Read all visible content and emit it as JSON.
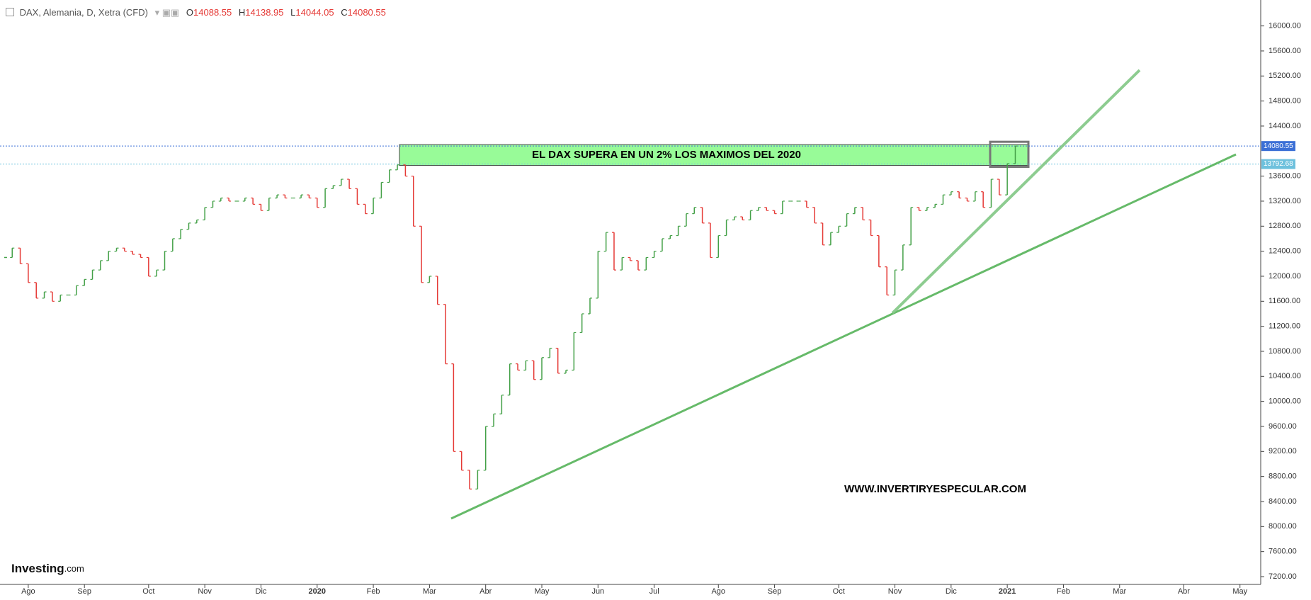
{
  "header": {
    "title": "DAX, Alemania, D, Xetra (CFD)",
    "o_label": "O",
    "open": "14088.55",
    "h_label": "H",
    "high": "14138.95",
    "l_label": "L",
    "low": "14044.05",
    "c_label": "C",
    "close": "14080.55"
  },
  "chart_data": {
    "type": "price-bars",
    "annotation": "EL DAX SUPERA EN UN 2% LOS MAXIMOS DEL 2020",
    "watermark": "WWW.INVERTIRYESPECULAR.COM",
    "logo": "Investing",
    "logo_suffix": ".com",
    "up_color": "#43a047",
    "down_color": "#e53935",
    "categories": [
      null,
      null,
      null,
      "Ago",
      null,
      null,
      null,
      null,
      null,
      null,
      "Sep",
      null,
      null,
      null,
      null,
      null,
      null,
      null,
      "Oct",
      null,
      null,
      null,
      null,
      null,
      null,
      "Nov",
      null,
      null,
      null,
      null,
      null,
      null,
      "Dic",
      null,
      null,
      null,
      null,
      null,
      null,
      "2020",
      null,
      null,
      null,
      null,
      null,
      null,
      "Feb",
      null,
      null,
      null,
      null,
      null,
      null,
      "Mar",
      null,
      null,
      null,
      null,
      null,
      null,
      "Abr",
      null,
      null,
      null,
      null,
      null,
      null,
      "May",
      null,
      null,
      null,
      null,
      null,
      null,
      "Jun",
      null,
      null,
      null,
      null,
      null,
      null,
      "Jul",
      null,
      null,
      null,
      null,
      null,
      null,
      null,
      "Ago",
      null,
      null,
      null,
      null,
      null,
      null,
      "Sep",
      null,
      null,
      null,
      null,
      null,
      null,
      null,
      "Oct",
      null,
      null,
      null,
      null,
      null,
      null,
      "Nov",
      null,
      null,
      null,
      null,
      null,
      null,
      "Dic",
      null,
      null,
      null,
      null,
      null,
      null,
      "2021",
      null,
      null,
      null,
      null,
      null,
      null,
      "Feb",
      null,
      null,
      null,
      null,
      null,
      null,
      "Mar",
      null,
      null,
      null,
      null,
      null,
      null,
      null,
      "Abr",
      null,
      null,
      null,
      null,
      null,
      null,
      "May",
      null,
      null
    ],
    "values": [
      12300,
      12450,
      12200,
      11900,
      11650,
      11750,
      11600,
      11700,
      11700,
      11850,
      11950,
      12100,
      12250,
      12400,
      12450,
      12400,
      12350,
      12300,
      12000,
      12100,
      12400,
      12600,
      12750,
      12850,
      12900,
      13100,
      13200,
      13250,
      13200,
      13200,
      13250,
      13150,
      13050,
      13250,
      13300,
      13250,
      13250,
      13300,
      13250,
      13100,
      13400,
      13450,
      13550,
      13400,
      13150,
      13000,
      13250,
      13500,
      13700,
      13780,
      13600,
      12800,
      11900,
      12000,
      11550,
      10600,
      9200,
      8900,
      8600,
      8900,
      9600,
      9800,
      10100,
      10600,
      10500,
      10650,
      10350,
      10700,
      10850,
      10450,
      10500,
      11100,
      11400,
      11650,
      12400,
      12700,
      12100,
      12300,
      12250,
      12100,
      12300,
      12400,
      12600,
      12650,
      12800,
      13000,
      13100,
      12850,
      12300,
      12650,
      12900,
      12950,
      12900,
      13050,
      13100,
      13050,
      13000,
      13200,
      13200,
      13200,
      13100,
      12850,
      12500,
      12700,
      12800,
      13000,
      13100,
      12900,
      12650,
      12150,
      11700,
      12100,
      12500,
      13100,
      13050,
      13100,
      13150,
      13300,
      13350,
      13250,
      13200,
      13350,
      13100,
      13550,
      13300,
      13800,
      14080.55,
      null,
      null,
      null,
      null,
      null,
      null,
      null,
      null,
      null,
      null,
      null,
      null,
      null,
      null,
      null,
      null,
      null,
      null,
      null,
      null,
      null,
      null,
      null,
      null,
      null,
      null,
      null,
      null,
      null,
      null
    ],
    "ylim": [
      7200,
      16000
    ],
    "yticks": [
      {
        "value": 7200,
        "label": "7200.00"
      },
      {
        "value": 7600,
        "label": "7600.00"
      },
      {
        "value": 8000,
        "label": "8000.00"
      },
      {
        "value": 8400,
        "label": "8400.00"
      },
      {
        "value": 8800,
        "label": "8800.00"
      },
      {
        "value": 9200,
        "label": "9200.00"
      },
      {
        "value": 9600,
        "label": "9600.00"
      },
      {
        "value": 10000,
        "label": "10000.00"
      },
      {
        "value": 10400,
        "label": "10400.00"
      },
      {
        "value": 10800,
        "label": "10800.00"
      },
      {
        "value": 11200,
        "label": "11200.00"
      },
      {
        "value": 11600,
        "label": "11600.00"
      },
      {
        "value": 12000,
        "label": "12000.00"
      },
      {
        "value": 12400,
        "label": "12400.00"
      },
      {
        "value": 12800,
        "label": "12800.00"
      },
      {
        "value": 13200,
        "label": "13200.00"
      },
      {
        "value": 13600,
        "label": "13600.00"
      },
      {
        "value": 14400,
        "label": "14400.00"
      },
      {
        "value": 14800,
        "label": "14800.00"
      },
      {
        "value": 15200,
        "label": "15200.00"
      },
      {
        "value": 15600,
        "label": "15600.00"
      },
      {
        "value": 16000,
        "label": "16000.00"
      }
    ],
    "price_lines": [
      {
        "value": 14080.55,
        "label": "14080.55",
        "color": "#3b6fd6"
      },
      {
        "value": 13792.68,
        "label": "13792.68",
        "color": "#6ec1dd"
      }
    ]
  }
}
